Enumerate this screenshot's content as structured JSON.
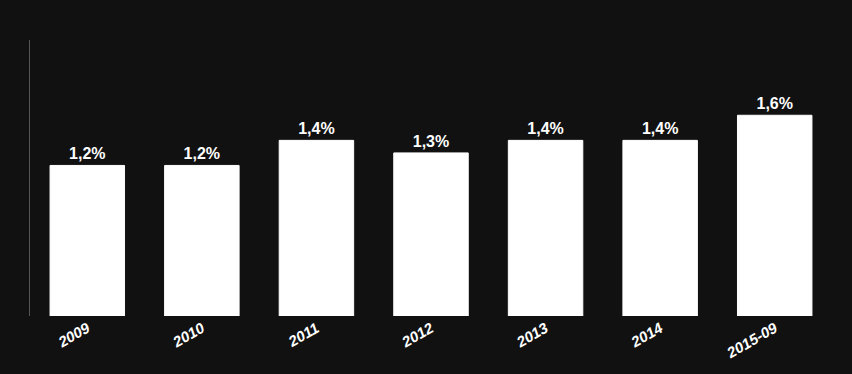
{
  "chart_data": {
    "type": "bar",
    "categories": [
      "2009",
      "2010",
      "2011",
      "2012",
      "2013",
      "2014",
      "2015-09"
    ],
    "values": [
      1.2,
      1.2,
      1.4,
      1.3,
      1.4,
      1.4,
      1.6
    ],
    "value_labels": [
      "1,2%",
      "1,2%",
      "1,4%",
      "1,3%",
      "1,4%",
      "1,4%",
      "1,6%"
    ],
    "data_labels": true,
    "color": "#ffffff",
    "ylim": [
      0,
      2.2
    ],
    "grid": false,
    "tick_labels": "x"
  }
}
